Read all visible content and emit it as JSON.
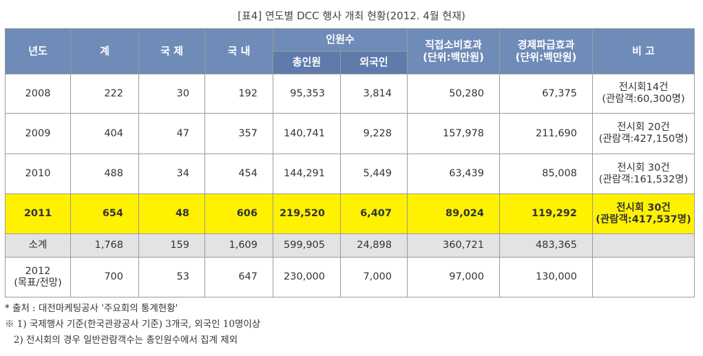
{
  "title": "[표4] 연도별 DCC 행사 개최 현황(2012. 4월 현재)",
  "headers": {
    "year": "년도",
    "total": "계",
    "intl": "국 제",
    "domestic": "국 내",
    "attendees": "인원수",
    "attendees_total": "총인원",
    "attendees_foreign": "외국인",
    "direct_line1": "직접소비효과",
    "direct_line2": "(단위:백만원)",
    "economic_line1": "경제파급효과",
    "economic_line2": "(단위:백만원)",
    "remarks": "비 고"
  },
  "rows": [
    {
      "year": "2008",
      "year2": "",
      "total": "222",
      "intl": "30",
      "domestic": "192",
      "attendees_total": "95,353",
      "attendees_foreign": "3,814",
      "direct": "50,280",
      "economic": "67,375",
      "note1": "전시회14건",
      "note2": "(관람객:60,300명)"
    },
    {
      "year": "2009",
      "year2": "",
      "total": "404",
      "intl": "47",
      "domestic": "357",
      "attendees_total": "140,741",
      "attendees_foreign": "9,228",
      "direct": "157,978",
      "economic": "211,690",
      "note1": "전시회 20건",
      "note2": "(관람객:427,150명)"
    },
    {
      "year": "2010",
      "year2": "",
      "total": "488",
      "intl": "34",
      "domestic": "454",
      "attendees_total": "144,291",
      "attendees_foreign": "5,449",
      "direct": "63,439",
      "economic": "85,008",
      "note1": "전시회 30건",
      "note2": "(관람객:161,532명)"
    },
    {
      "year": "2011",
      "year2": "",
      "total": "654",
      "intl": "48",
      "domestic": "606",
      "attendees_total": "219,520",
      "attendees_foreign": "6,407",
      "direct": "89,024",
      "economic": "119,292",
      "note1": "전시회 30건",
      "note2": "(관람객:417,537명)"
    },
    {
      "year": "소계",
      "year2": "",
      "total": "1,768",
      "intl": "159",
      "domestic": "1,609",
      "attendees_total": "599,905",
      "attendees_foreign": "24,898",
      "direct": "360,721",
      "economic": "483,365",
      "note1": "",
      "note2": ""
    },
    {
      "year": "2012",
      "year2": "(목표/전망)",
      "total": "700",
      "intl": "53",
      "domestic": "647",
      "attendees_total": "230,000",
      "attendees_foreign": "7,000",
      "direct": "97,000",
      "economic": "130,000",
      "note1": "",
      "note2": ""
    }
  ],
  "notes": [
    "* 출처 : 대전마케팅공사 '주요회의 통계현황'",
    "※ 1) 국제행사 기준(한국관광공사 기준) 3개국, 외국인 10명이상",
    "   2) 전시회의 경우 일반관람객수는 총인원수에서 집계 제외"
  ],
  "colors": {
    "header_bg": "#6f8bb8",
    "highlight_row": "#fff200",
    "subtotal_row": "#e3e3e3"
  }
}
